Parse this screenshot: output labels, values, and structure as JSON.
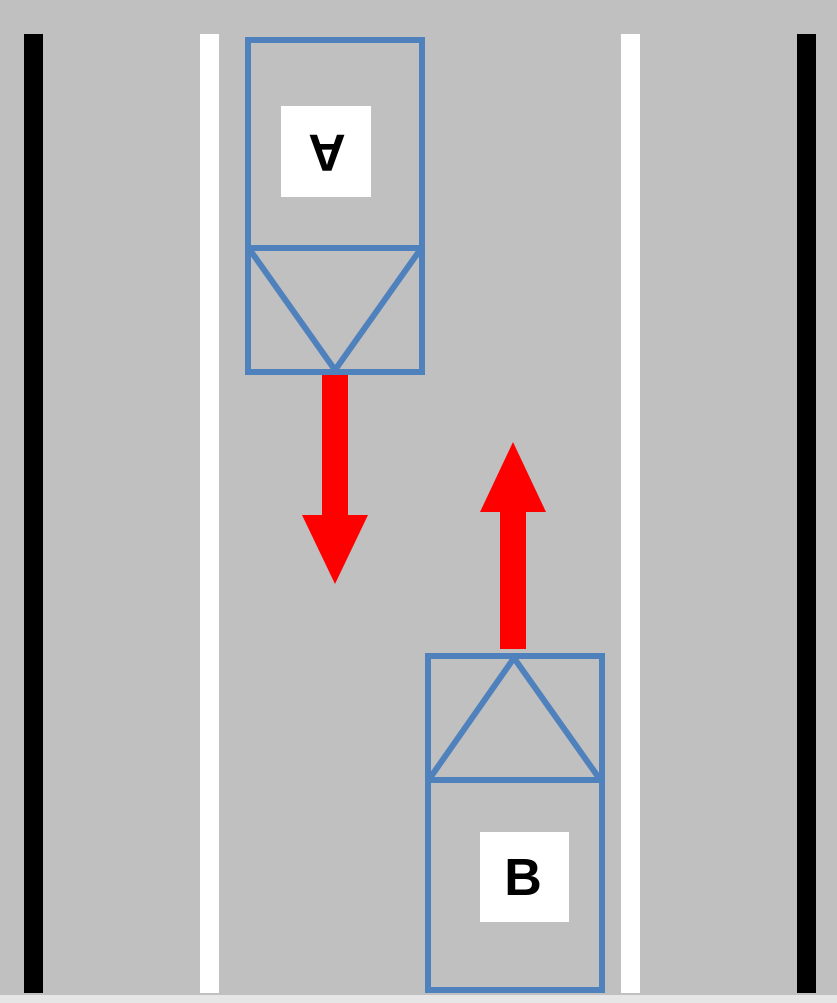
{
  "colors": {
    "road": "#c0c0c0",
    "road_edge_line": "#000000",
    "lane_line": "#ffffff",
    "vehicle_outline": "#4f81bd",
    "direction_arrow": "#ff0000",
    "label_background": "#ffffff",
    "label_text": "#000000"
  },
  "vehicles": [
    {
      "id": "A",
      "label": "A",
      "label_rotated": true,
      "heading": "down"
    },
    {
      "id": "B",
      "label": "B",
      "label_rotated": false,
      "heading": "up"
    }
  ]
}
